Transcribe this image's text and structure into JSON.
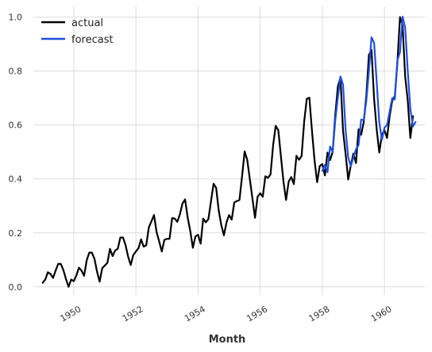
{
  "chart_data": {
    "type": "line",
    "xlabel": "Month",
    "ylabel": "",
    "xlim": [
      1948.7,
      1961.3
    ],
    "ylim": [
      -0.03,
      1.04
    ],
    "x_ticks": [
      1950,
      1952,
      1954,
      1956,
      1958,
      1960
    ],
    "y_ticks": [
      0.0,
      0.2,
      0.4,
      0.6,
      0.8,
      1.0
    ],
    "grid": true,
    "legend_position": "top-left",
    "series": [
      {
        "name": "actual",
        "color": "#000000",
        "start": 1949.0,
        "step_months": 1,
        "values": [
          0.015,
          0.027,
          0.054,
          0.048,
          0.033,
          0.06,
          0.085,
          0.085,
          0.062,
          0.029,
          0.0,
          0.027,
          0.021,
          0.042,
          0.071,
          0.06,
          0.041,
          0.098,
          0.127,
          0.127,
          0.104,
          0.056,
          0.019,
          0.069,
          0.079,
          0.089,
          0.141,
          0.114,
          0.135,
          0.141,
          0.183,
          0.183,
          0.155,
          0.112,
          0.081,
          0.118,
          0.131,
          0.143,
          0.176,
          0.149,
          0.154,
          0.22,
          0.243,
          0.266,
          0.203,
          0.168,
          0.131,
          0.174,
          0.178,
          0.178,
          0.255,
          0.253,
          0.241,
          0.269,
          0.309,
          0.324,
          0.257,
          0.207,
          0.145,
          0.187,
          0.193,
          0.16,
          0.253,
          0.239,
          0.251,
          0.317,
          0.382,
          0.367,
          0.282,
          0.228,
          0.191,
          0.239,
          0.266,
          0.249,
          0.313,
          0.318,
          0.322,
          0.409,
          0.502,
          0.471,
          0.4,
          0.328,
          0.256,
          0.334,
          0.347,
          0.334,
          0.41,
          0.404,
          0.417,
          0.525,
          0.597,
          0.581,
          0.485,
          0.39,
          0.322,
          0.39,
          0.407,
          0.381,
          0.486,
          0.471,
          0.485,
          0.613,
          0.697,
          0.701,
          0.579,
          0.469,
          0.388,
          0.448,
          0.455,
          0.413,
          0.498,
          0.47,
          0.5,
          0.637,
          0.743,
          0.775,
          0.579,
          0.492,
          0.398,
          0.45,
          0.494,
          0.459,
          0.584,
          0.564,
          0.611,
          0.709,
          0.86,
          0.878,
          0.697,
          0.584,
          0.498,
          0.564,
          0.581,
          0.552,
          0.633,
          0.69,
          0.707,
          0.832,
          1.0,
          0.969,
          0.78,
          0.69,
          0.552,
          0.633
        ]
      },
      {
        "name": "forecast",
        "color": "#1f4fe0",
        "start": 1958.0,
        "step_months": 1,
        "values": [
          0.43,
          0.452,
          0.425,
          0.52,
          0.5,
          0.617,
          0.701,
          0.78,
          0.75,
          0.58,
          0.48,
          0.447,
          0.48,
          0.51,
          0.525,
          0.62,
          0.618,
          0.69,
          0.8,
          0.925,
          0.905,
          0.76,
          0.61,
          0.545,
          0.59,
          0.6,
          0.65,
          0.7,
          0.695,
          0.84,
          0.87,
          1.002,
          0.96,
          0.8,
          0.66,
          0.595,
          0.611
        ]
      }
    ]
  }
}
